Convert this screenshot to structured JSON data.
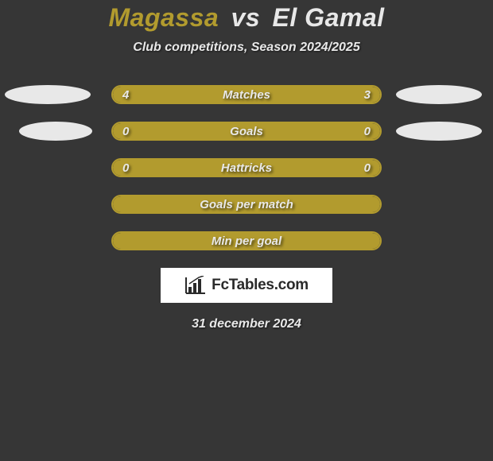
{
  "title": {
    "player1": "Magassa",
    "vs": "vs",
    "player2": "El Gamal",
    "player1_color": "#b29b2e",
    "vs_color": "#e8e8e8",
    "player2_color": "#e8e8e8",
    "fontsize": 32
  },
  "subtitle": "Club competitions, Season 2024/2025",
  "background_color": "#363636",
  "bar_color": "#b29b2e",
  "text_color": "#e8e8e8",
  "ellipse_color": "#e8e8e8",
  "stats": [
    {
      "label": "Matches",
      "left_value": "4",
      "right_value": "3",
      "left_fill_pct": 57,
      "right_fill_pct": 43,
      "show_ellipses": true,
      "ellipse_left_width": 108,
      "ellipse_right_width": 108
    },
    {
      "label": "Goals",
      "left_value": "0",
      "right_value": "0",
      "left_fill_pct": 100,
      "right_fill_pct": 0,
      "show_ellipses": true,
      "ellipse_left_width": 92,
      "ellipse_right_width": 108
    },
    {
      "label": "Hattricks",
      "left_value": "0",
      "right_value": "0",
      "left_fill_pct": 100,
      "right_fill_pct": 0,
      "show_ellipses": false
    },
    {
      "label": "Goals per match",
      "left_value": "",
      "right_value": "",
      "left_fill_pct": 100,
      "right_fill_pct": 0,
      "show_ellipses": false
    },
    {
      "label": "Min per goal",
      "left_value": "",
      "right_value": "",
      "left_fill_pct": 100,
      "right_fill_pct": 0,
      "show_ellipses": false
    }
  ],
  "logo": {
    "text": "FcTables.com",
    "background": "#ffffff",
    "text_color": "#2a2a2a"
  },
  "date": "31 december 2024"
}
